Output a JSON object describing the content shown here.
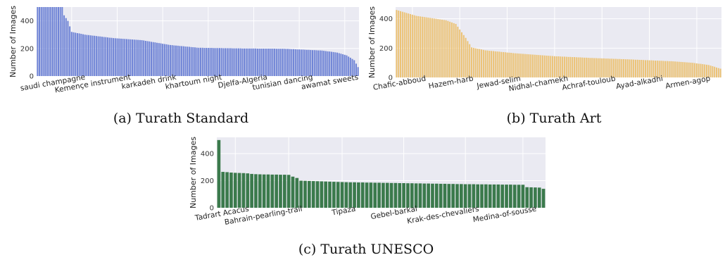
{
  "captions": {
    "a": "(a) Turath Standard",
    "b": "(b) Turath Art",
    "c": "(c) Turath UNESCO"
  },
  "chart_data": [
    {
      "id": "a",
      "type": "bar",
      "title": "",
      "ylabel": "Number of Images",
      "xlabel": "",
      "ylim": [
        0,
        500
      ],
      "yticks": [
        0,
        200,
        400
      ],
      "grid": true,
      "bar_color": "#6f84d6",
      "bar_count": 170,
      "tick_labels": [
        "saudi champagne",
        "Kemençe instrument",
        "karkadeh drink",
        "khartoum night",
        "Djelfa-Algeria",
        "tunisian dancing",
        "awamat sweets"
      ],
      "tick_positions": [
        18,
        42,
        66,
        90,
        114,
        138,
        162
      ],
      "profile": [
        [
          0,
          500
        ],
        [
          13,
          500
        ],
        [
          14,
          440
        ],
        [
          16,
          400
        ],
        [
          18,
          320
        ],
        [
          25,
          300
        ],
        [
          40,
          275
        ],
        [
          55,
          260
        ],
        [
          70,
          225
        ],
        [
          85,
          205
        ],
        [
          110,
          200
        ],
        [
          130,
          198
        ],
        [
          150,
          185
        ],
        [
          158,
          170
        ],
        [
          163,
          150
        ],
        [
          167,
          115
        ],
        [
          169,
          65
        ]
      ]
    },
    {
      "id": "b",
      "type": "bar",
      "title": "",
      "ylabel": "Number of Images",
      "xlabel": "",
      "ylim": [
        0,
        480
      ],
      "yticks": [
        0,
        200,
        400
      ],
      "grid": true,
      "bar_color": "#ecc273",
      "bar_count": 165,
      "tick_labels": [
        "Chafic-abboud",
        "Hazem-harb",
        "Jewad-selim",
        "Nidhal-chamekh",
        "Achraf-touloub",
        "Ayad-alkadhi",
        "Armen-agop"
      ],
      "tick_positions": [
        8,
        32,
        56,
        80,
        104,
        128,
        152
      ],
      "profile": [
        [
          0,
          460
        ],
        [
          10,
          420
        ],
        [
          25,
          390
        ],
        [
          30,
          365
        ],
        [
          35,
          270
        ],
        [
          38,
          205
        ],
        [
          45,
          185
        ],
        [
          60,
          165
        ],
        [
          80,
          145
        ],
        [
          100,
          132
        ],
        [
          120,
          122
        ],
        [
          140,
          110
        ],
        [
          150,
          100
        ],
        [
          158,
          85
        ],
        [
          164,
          60
        ]
      ]
    },
    {
      "id": "c",
      "type": "bar",
      "title": "",
      "ylabel": "Number of Images",
      "xlabel": "",
      "ylim": [
        0,
        520
      ],
      "yticks": [
        0,
        200,
        400
      ],
      "grid": true,
      "bar_color": "#3b7a4c",
      "bar_count": 80,
      "tick_labels": [
        "Tadrart Acacus",
        "Bahrain-pearling-trail",
        "Tipaza",
        "Gebel-barkal",
        "Krak-des-chevaliers",
        "Medina-of-sousse"
      ],
      "tick_positions": [
        4,
        17,
        30,
        45,
        60,
        74
      ],
      "values": [
        500,
        265,
        263,
        260,
        258,
        257,
        256,
        254,
        250,
        248,
        247,
        246,
        246,
        245,
        245,
        244,
        244,
        243,
        230,
        220,
        200,
        199,
        198,
        197,
        196,
        195,
        194,
        193,
        192,
        191,
        190,
        189,
        188,
        188,
        187,
        187,
        186,
        186,
        185,
        185,
        184,
        184,
        183,
        183,
        182,
        182,
        181,
        181,
        180,
        180,
        179,
        179,
        178,
        178,
        177,
        177,
        176,
        176,
        175,
        175,
        174,
        174,
        174,
        173,
        173,
        173,
        172,
        172,
        172,
        171,
        171,
        171,
        170,
        170,
        170,
        152,
        151,
        150,
        149,
        140
      ]
    }
  ]
}
